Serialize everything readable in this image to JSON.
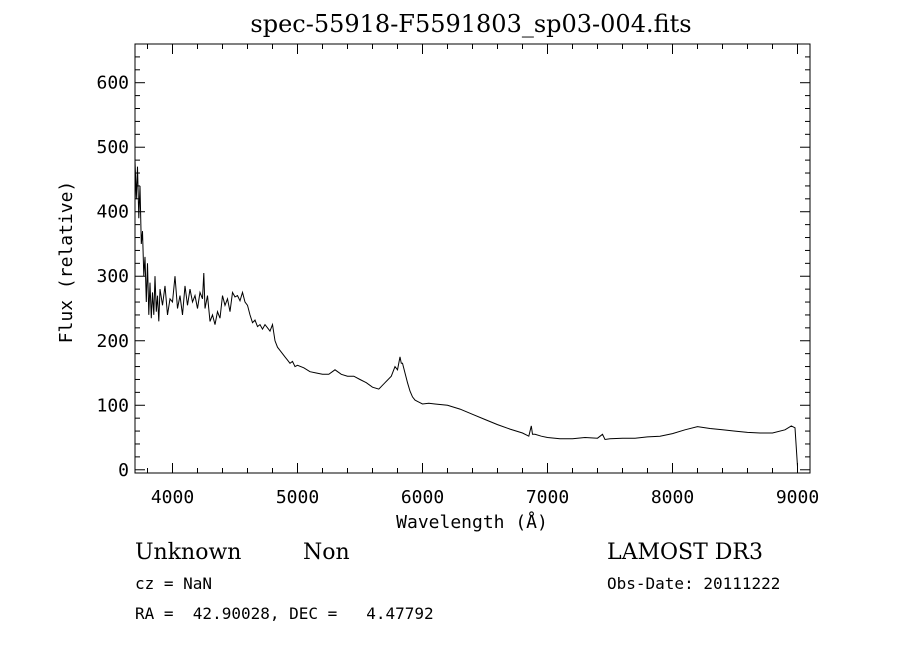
{
  "chart_data": {
    "type": "line",
    "title": "spec-55918-F5591803_sp03-004.fits",
    "xlabel": "Wavelength (Å)",
    "ylabel": "Flux (relative)",
    "xlim": [
      3700,
      9100
    ],
    "ylim": [
      -5,
      660
    ],
    "x_ticks": [
      "4000",
      "5000",
      "6000",
      "7000",
      "8000",
      "9000"
    ],
    "y_ticks": [
      "0",
      "100",
      "200",
      "300",
      "400",
      "500",
      "600"
    ],
    "x_tick_values": [
      4000,
      5000,
      6000,
      7000,
      8000,
      9000
    ],
    "y_tick_values": [
      0,
      100,
      200,
      300,
      400,
      500,
      600
    ],
    "x_minor_step": 200,
    "y_minor_step": 20,
    "grid": false,
    "series": [
      {
        "x": [
          3700,
          3710,
          3720,
          3730,
          3740,
          3750,
          3760,
          3770,
          3780,
          3790,
          3800,
          3810,
          3820,
          3830,
          3840,
          3850,
          3860,
          3870,
          3880,
          3890,
          3900,
          3920,
          3940,
          3960,
          3980,
          4000,
          4020,
          4040,
          4060,
          4080,
          4100,
          4120,
          4140,
          4160,
          4180,
          4200,
          4220,
          4240,
          4250,
          4260,
          4280,
          4300,
          4320,
          4340,
          4360,
          4380,
          4400,
          4420,
          4440,
          4460,
          4480,
          4500,
          4520,
          4540,
          4560,
          4580,
          4600,
          4620,
          4640,
          4660,
          4680,
          4700,
          4720,
          4740,
          4760,
          4780,
          4800,
          4820,
          4840,
          4860,
          4880,
          4900,
          4920,
          4940,
          4960,
          4980,
          5000,
          5050,
          5100,
          5150,
          5200,
          5250,
          5300,
          5350,
          5400,
          5450,
          5500,
          5550,
          5600,
          5650,
          5700,
          5750,
          5780,
          5800,
          5820,
          5830,
          5840,
          5860,
          5880,
          5900,
          5920,
          5940,
          5960,
          5980,
          6000,
          6050,
          6100,
          6200,
          6300,
          6400,
          6500,
          6600,
          6700,
          6800,
          6850,
          6870,
          6880,
          6900,
          6950,
          7000,
          7100,
          7200,
          7300,
          7400,
          7440,
          7460,
          7500,
          7600,
          7700,
          7800,
          7900,
          8000,
          8100,
          8200,
          8300,
          8400,
          8500,
          8600,
          8700,
          8800,
          8900,
          8950,
          8980,
          9000
        ],
        "y": [
          480,
          420,
          470,
          390,
          440,
          350,
          370,
          300,
          330,
          260,
          320,
          240,
          290,
          235,
          275,
          240,
          300,
          245,
          270,
          230,
          280,
          255,
          285,
          240,
          265,
          260,
          300,
          250,
          270,
          240,
          285,
          255,
          280,
          260,
          270,
          250,
          275,
          265,
          305,
          250,
          270,
          230,
          240,
          225,
          245,
          235,
          270,
          255,
          265,
          245,
          275,
          268,
          270,
          262,
          275,
          260,
          255,
          240,
          228,
          232,
          222,
          225,
          218,
          225,
          220,
          215,
          225,
          200,
          190,
          185,
          180,
          175,
          170,
          165,
          168,
          160,
          162,
          158,
          152,
          150,
          148,
          148,
          155,
          148,
          145,
          145,
          140,
          135,
          128,
          125,
          135,
          145,
          160,
          155,
          175,
          165,
          165,
          150,
          135,
          122,
          113,
          108,
          106,
          104,
          102,
          103,
          102,
          100,
          94,
          86,
          78,
          70,
          63,
          57,
          52,
          68,
          55,
          55,
          52,
          50,
          48,
          48,
          50,
          49,
          55,
          47,
          48,
          49,
          49,
          51,
          52,
          56,
          62,
          67,
          64,
          62,
          60,
          58,
          57,
          57,
          62,
          68,
          65,
          5
        ]
      }
    ]
  },
  "footer": {
    "object_class": "Unknown",
    "object_subclass": "Non",
    "redshift": "cz = NaN",
    "coords": "RA =  42.90028, DEC =   4.47792",
    "survey": "LAMOST DR3",
    "obs_date": "Obs-Date: 20111222"
  }
}
